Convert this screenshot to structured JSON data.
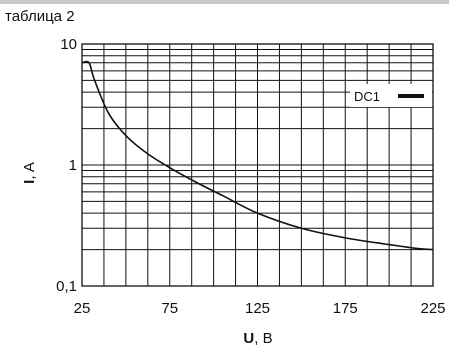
{
  "header": {
    "table_label": "таблица 2"
  },
  "chart_data": {
    "type": "line",
    "x": [
      25,
      29,
      32,
      40,
      50,
      62,
      75,
      90,
      105,
      125,
      150,
      175,
      200,
      215,
      225
    ],
    "series": [
      {
        "name": "DC1",
        "values": [
          7,
          7,
          5.1,
          2.7,
          1.75,
          1.25,
          0.95,
          0.72,
          0.56,
          0.4,
          0.3,
          0.25,
          0.22,
          0.205,
          0.2
        ],
        "color": "#111111"
      }
    ],
    "xlabel_bold": "U",
    "xlabel_rest": ", B",
    "ylabel_bold": "I",
    "ylabel_rest": ", A",
    "xticks": [
      "25",
      "75",
      "125",
      "175",
      "225"
    ],
    "yticks": [
      "0,1",
      "1",
      "10"
    ],
    "xlim": [
      25,
      225
    ],
    "ylim": [
      0.1,
      10
    ],
    "y_scale": "log",
    "x_minor_step": 12.5,
    "grid": true,
    "legend_position": "top-right",
    "grid_color": "#111111"
  }
}
